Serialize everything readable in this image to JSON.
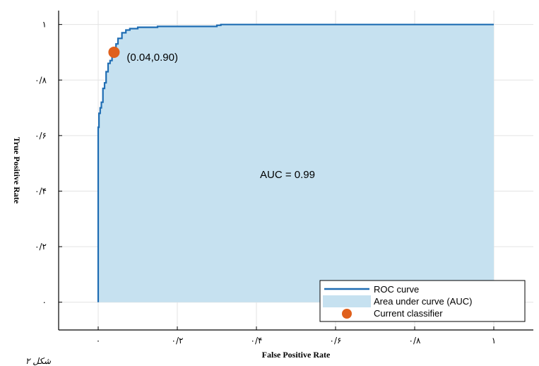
{
  "chart_data": {
    "type": "area",
    "xlabel": "False Positive Rate",
    "ylabel": "True Positive Rate",
    "xlim": [
      -0.1,
      1.1
    ],
    "ylim": [
      -0.1,
      1.05
    ],
    "x_ticks": [
      0,
      0.2,
      0.4,
      0.6,
      0.8,
      1
    ],
    "x_tick_labels": [
      "۰",
      "۰/۲",
      "۰/۴",
      "۰/۶",
      "۰/۸",
      "۱"
    ],
    "y_ticks": [
      0,
      0.2,
      0.4,
      0.6,
      0.8,
      1
    ],
    "y_tick_labels": [
      "۰",
      "۰/۲",
      "۰/۴",
      "۰/۶",
      "۰/۸",
      "۱"
    ],
    "grid": true,
    "series": [
      {
        "name": "ROC curve",
        "color": "#1f6db3",
        "x": [
          0,
          0,
          0.002,
          0.002,
          0.005,
          0.005,
          0.008,
          0.008,
          0.012,
          0.012,
          0.016,
          0.016,
          0.02,
          0.02,
          0.025,
          0.025,
          0.03,
          0.03,
          0.035,
          0.035,
          0.04,
          0.04,
          0.045,
          0.045,
          0.05,
          0.05,
          0.06,
          0.06,
          0.07,
          0.07,
          0.08,
          0.08,
          0.1,
          0.1,
          0.15,
          0.15,
          0.3,
          0.3,
          0.31,
          0.31,
          1.0
        ],
        "y": [
          0,
          0.63,
          0.63,
          0.68,
          0.68,
          0.7,
          0.7,
          0.72,
          0.72,
          0.77,
          0.77,
          0.79,
          0.79,
          0.83,
          0.83,
          0.86,
          0.86,
          0.87,
          0.87,
          0.89,
          0.89,
          0.9,
          0.9,
          0.93,
          0.93,
          0.95,
          0.95,
          0.97,
          0.97,
          0.98,
          0.98,
          0.985,
          0.985,
          0.99,
          0.99,
          0.993,
          0.993,
          0.997,
          0.997,
          1.0,
          1.0
        ]
      }
    ],
    "area": {
      "name": "Area under curve (AUC)",
      "color": "#c6e1f0"
    },
    "point": {
      "name": "Current classifier",
      "x": 0.04,
      "y": 0.9,
      "color": "#e0601c",
      "label": "(0.04,0.90)"
    },
    "annotation": "AUC = 0.99",
    "legend_position": "bottom-right",
    "caption": "شکل ۲"
  }
}
